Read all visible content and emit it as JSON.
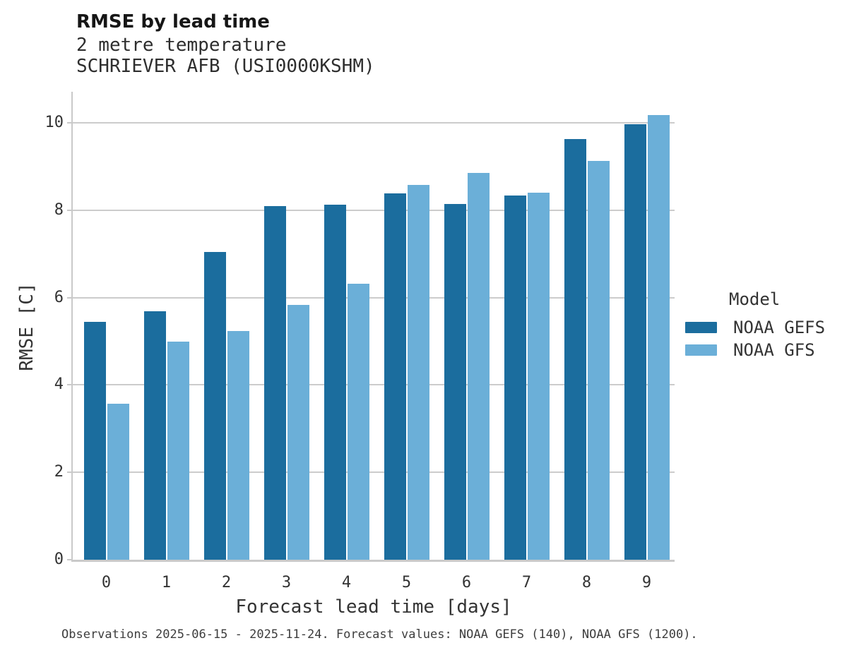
{
  "chart_data": {
    "type": "bar",
    "title": "RMSE by lead time",
    "subtitle_lines": [
      "2 metre temperature",
      "SCHRIEVER AFB (USI0000KSHM)"
    ],
    "xlabel": "Forecast lead time [days]",
    "ylabel": "RMSE [C]",
    "categories": [
      "0",
      "1",
      "2",
      "3",
      "4",
      "5",
      "6",
      "7",
      "8",
      "9"
    ],
    "series": [
      {
        "name": "NOAA GEFS",
        "color": "#1b6d9e",
        "values": [
          5.44,
          5.69,
          7.04,
          8.09,
          8.13,
          8.38,
          8.14,
          8.34,
          9.63,
          9.97
        ]
      },
      {
        "name": "NOAA GFS",
        "color": "#6bafd8",
        "values": [
          3.57,
          4.99,
          5.23,
          5.83,
          6.31,
          8.57,
          8.86,
          8.4,
          9.13,
          10.18
        ]
      }
    ],
    "ylim": [
      0,
      10.71
    ],
    "yticks": [
      0,
      2,
      4,
      6,
      8,
      10
    ],
    "grid": "horizontal",
    "legend_title": "Model",
    "legend_position": "right",
    "caption": "Observations 2025-06-15 - 2025-11-24. Forecast values: NOAA GEFS (140), NOAA GFS (1200)."
  },
  "colors": {
    "axis": "#c9c9c9",
    "grid": "#cccccc",
    "text": "#333333"
  }
}
